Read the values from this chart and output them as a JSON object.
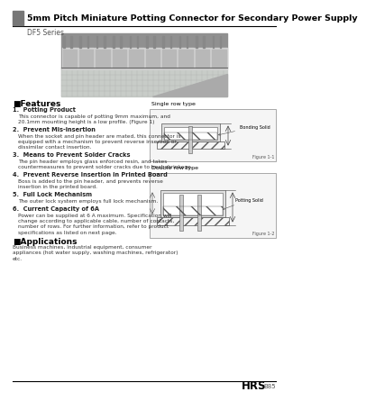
{
  "title": "5mm Pitch Miniature Potting Connector for Secondary Power Supply",
  "series_label": "DF5 Series",
  "bg_color": "#ffffff",
  "header_bar_color": "#777777",
  "header_line_color": "#000000",
  "title_color": "#000000",
  "title_fontsize": 6.8,
  "series_fontsize": 5.5,
  "features_title": "■Features",
  "applications_title": "■Applications",
  "applications_text": "Business machines, Industrial equipment, consumer\nappliances (hot water supply, washing machines, refrigerator)\netc.",
  "footer_brand": "HRS",
  "footer_page": "B85",
  "single_row_label": "Single row type",
  "double_row_label": "Double row type",
  "fig1_label": "Figure 1-1",
  "fig2_label": "Figure 1-2",
  "bonding_solid": "Bonding Solid",
  "potting_solid": "Potting Solid"
}
